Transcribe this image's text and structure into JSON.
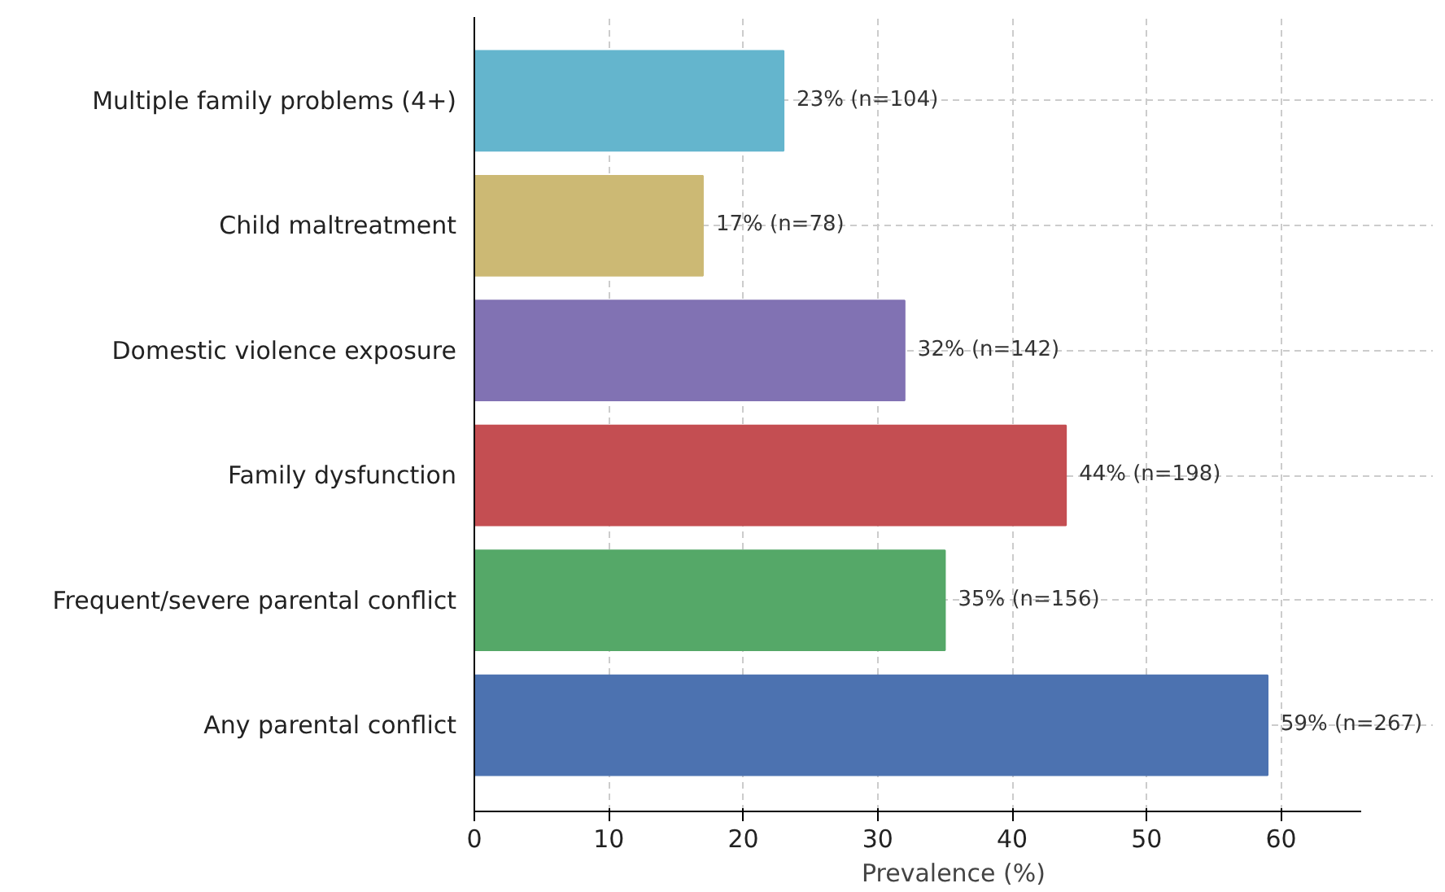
{
  "chart_data": {
    "type": "bar",
    "orientation": "horizontal",
    "xlabel": "Prevalence (%)",
    "categories": [
      "Multiple family problems (4+)",
      "Child maltreatment",
      "Domestic violence exposure",
      "Family dysfunction",
      "Frequent/severe parental conflict",
      "Any parental conflict"
    ],
    "values": [
      23,
      17,
      32,
      44,
      35,
      59
    ],
    "colors": [
      "#64b5cd",
      "#ccb974",
      "#8172b3",
      "#c44e52",
      "#55a868",
      "#4c72b0"
    ],
    "value_labels": [
      "23% (n=104)",
      "17% (n=78)",
      "32% (n=142)",
      "44% (n=198)",
      "35% (n=156)",
      "59% (n=267)"
    ],
    "xlim": [
      0,
      66
    ],
    "xticks": [
      0,
      10,
      20,
      30,
      40,
      50,
      60
    ],
    "grid": true
  }
}
